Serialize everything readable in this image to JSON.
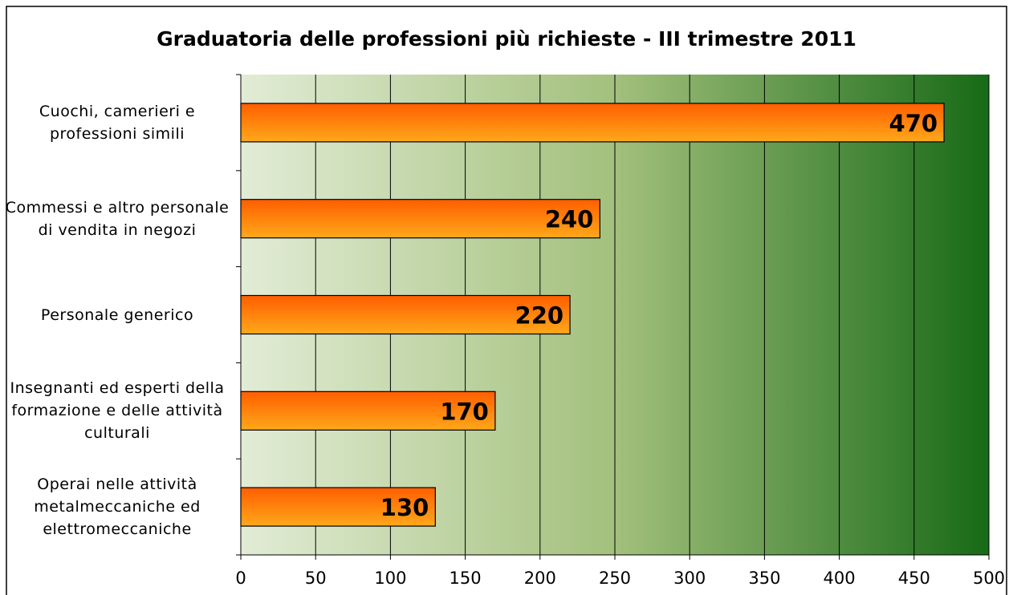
{
  "chart_data": {
    "type": "hbar",
    "title": "Graduatoria delle professioni più richieste - III trimestre 2011",
    "categories": [
      "Cuochi, camerieri e professioni simili",
      "Commessi e altro personale di vendita in negozi",
      "Personale generico",
      "Insegnanti ed esperti della formazione e delle attività culturali",
      "Operai nelle attività metalmeccaniche ed elettromeccaniche"
    ],
    "values": [
      470,
      240,
      220,
      170,
      130
    ],
    "color": "#ff8000",
    "xlim": [
      0,
      500
    ],
    "xticks": [
      0,
      50,
      100,
      150,
      200,
      250,
      300,
      350,
      400,
      450,
      500
    ],
    "grid": true
  }
}
